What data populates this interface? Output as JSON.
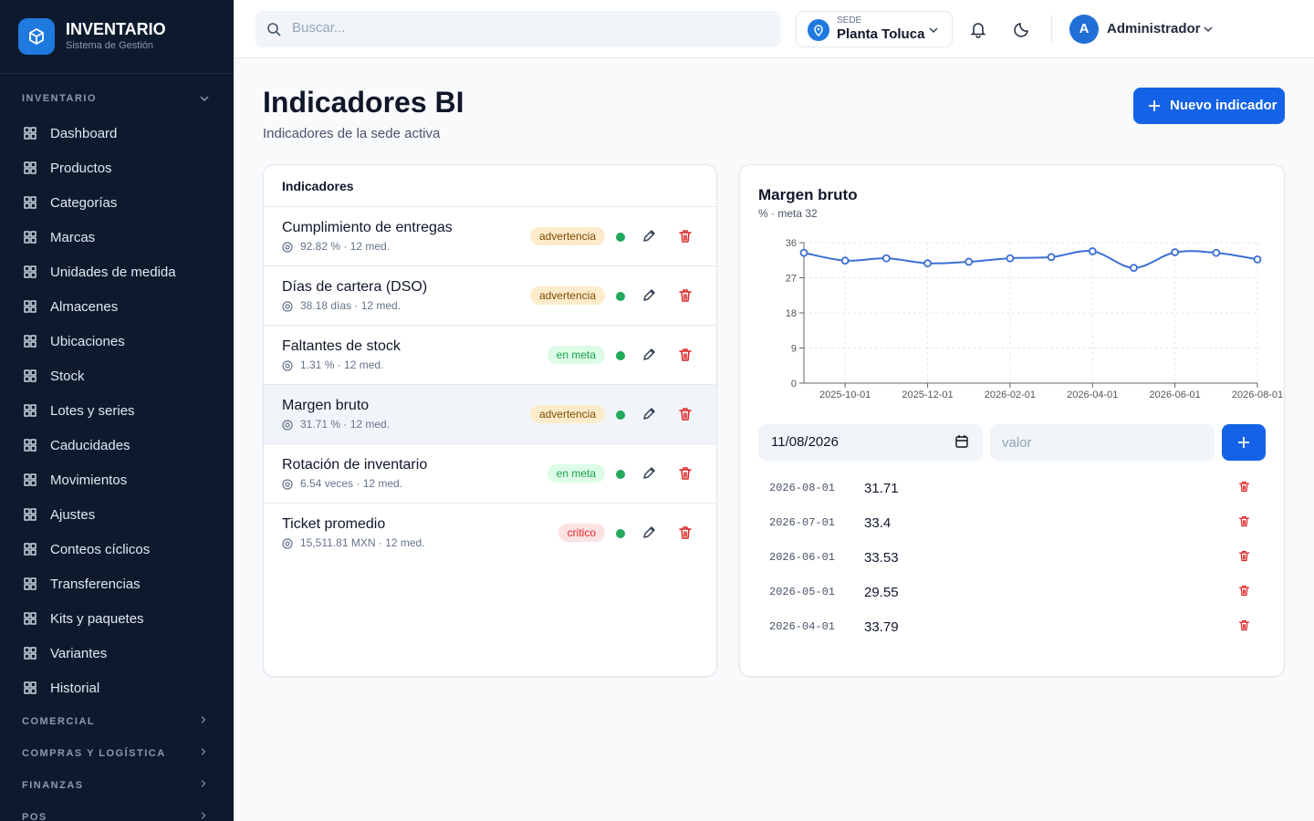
{
  "sidebar": {
    "brand": "INVENTARIO",
    "tagline": "Sistema de Gestión",
    "section": "INVENTARIO",
    "items": [
      "Dashboard",
      "Productos",
      "Categorías",
      "Marcas",
      "Unidades de medida",
      "Almacenes",
      "Ubicaciones",
      "Stock",
      "Lotes y series",
      "Caducidades",
      "Movimientos",
      "Ajustes",
      "Conteos cíclicos",
      "Transferencias",
      "Kits y paquetes",
      "Variantes",
      "Historial"
    ],
    "collapsed": [
      "COMERCIAL",
      "COMPRAS Y LOGÍSTICA",
      "FINANZAS",
      "POS"
    ]
  },
  "topbar": {
    "search_placeholder": "Buscar...",
    "site_label": "SEDE",
    "site": "Planta Toluca",
    "avatar": "A",
    "user": "Administrador"
  },
  "header": {
    "title": "Indicadores BI",
    "subtitle": "Indicadores de la sede activa",
    "button": "Nuevo indicador"
  },
  "indicators": {
    "title": "Indicadores",
    "rows": [
      {
        "name": "Cumplimiento de entregas",
        "detail": "92.82 % · 12 med.",
        "status": "advertencia",
        "status_bg": "#fdeccb",
        "status_fg": "#7c4a03"
      },
      {
        "name": "Días de cartera (DSO)",
        "detail": "38.18 días · 12 med.",
        "status": "advertencia",
        "status_bg": "#fdeccb",
        "status_fg": "#7c4a03"
      },
      {
        "name": "Faltantes de stock",
        "detail": "1.31 % · 12 med.",
        "status": "en meta",
        "status_bg": "#dcfce7",
        "status_fg": "#16a34a"
      },
      {
        "name": "Margen bruto",
        "detail": "31.71 % · 12 med.",
        "status": "advertencia",
        "status_bg": "#fdeccb",
        "status_fg": "#7c4a03"
      },
      {
        "name": "Rotación de inventario",
        "detail": "6.54 veces · 12 med.",
        "status": "en meta",
        "status_bg": "#dcfce7",
        "status_fg": "#16a34a"
      },
      {
        "name": "Ticket promedio",
        "detail": "15,511.81 MXN · 12 med.",
        "status": "critico",
        "status_bg": "#fde2e4",
        "status_fg": "#dc2626"
      }
    ]
  },
  "chart_data": {
    "type": "line",
    "title": "Margen bruto",
    "subtitle": "% · meta 32",
    "categories": [
      null,
      "2025-10-01",
      null,
      "2025-12-01",
      null,
      "2026-02-01",
      null,
      "2026-04-01",
      null,
      "2026-06-01",
      null,
      "2026-08-01"
    ],
    "values": [
      33.4,
      31.4,
      32.0,
      30.7,
      31.1,
      32.0,
      32.3,
      33.79,
      29.55,
      33.53,
      33.4,
      31.71
    ],
    "color": "#3b6fd4",
    "ylim": [
      0,
      36
    ],
    "yticks": [
      0,
      9,
      18,
      27,
      36
    ],
    "grid": true
  },
  "form": {
    "date": "11/08/2026",
    "value_placeholder": "valor"
  },
  "measurements": [
    {
      "date": "2026-08-01",
      "value": 31.71
    },
    {
      "date": "2026-07-01",
      "value": 33.4
    },
    {
      "date": "2026-06-01",
      "value": 33.53
    },
    {
      "date": "2026-05-01",
      "value": 29.55
    },
    {
      "date": "2026-04-01",
      "value": 33.79
    }
  ]
}
